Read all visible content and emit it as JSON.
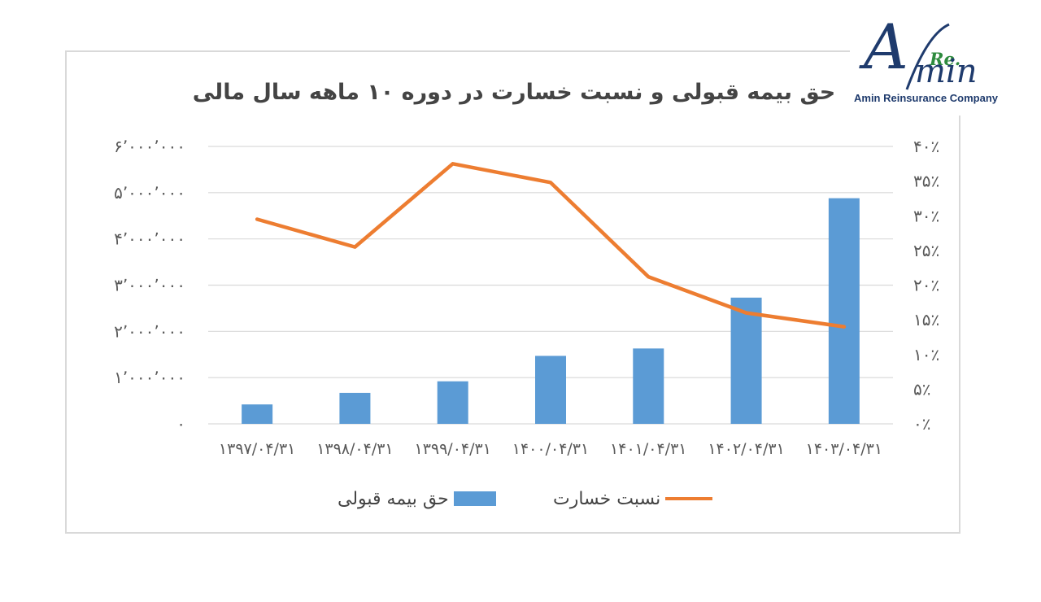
{
  "title": "حق بیمه قبولی و نسبت خسارت در دوره ۱۰ ماهه سال مالی",
  "logo": {
    "text": "Re. Amin",
    "subtitle": "Amin Reinsurance Company"
  },
  "colors": {
    "bar": "#5b9bd5",
    "line": "#ed7d31",
    "grid": "#d9d9d9",
    "text": "#595959"
  },
  "chart_data": {
    "type": "bar+line",
    "categories": [
      "۱۳۹۷/۰۴/۳۱",
      "۱۳۹۸/۰۴/۳۱",
      "۱۳۹۹/۰۴/۳۱",
      "۱۴۰۰/۰۴/۳۱",
      "۱۴۰۱/۰۴/۳۱",
      "۱۴۰۲/۰۴/۳۱",
      "۱۴۰۳/۰۴/۳۱"
    ],
    "series": [
      {
        "name": "حق بیمه قبولی",
        "type": "bar",
        "axis": "left",
        "values": [
          420000,
          670000,
          920000,
          1470000,
          1630000,
          2730000,
          4880000
        ]
      },
      {
        "name": "نسبت خسارت",
        "type": "line",
        "axis": "right",
        "values": [
          29.5,
          25.5,
          37.5,
          34.8,
          21.2,
          16.0,
          14.0
        ]
      }
    ],
    "y_left": {
      "min": 0,
      "max": 6000000,
      "ticks": [
        "۰",
        "۱٬۰۰۰٬۰۰۰",
        "۲٬۰۰۰٬۰۰۰",
        "۳٬۰۰۰٬۰۰۰",
        "۴٬۰۰۰٬۰۰۰",
        "۵٬۰۰۰٬۰۰۰",
        "۶٬۰۰۰٬۰۰۰"
      ]
    },
    "y_right": {
      "min": 0,
      "max": 40,
      "ticks": [
        "۰٪",
        "۵٪",
        "۱۰٪",
        "۱۵٪",
        "۲۰٪",
        "۲۵٪",
        "۳۰٪",
        "۳۵٪",
        "۴۰٪"
      ]
    },
    "grid": true,
    "legend_position": "bottom"
  }
}
